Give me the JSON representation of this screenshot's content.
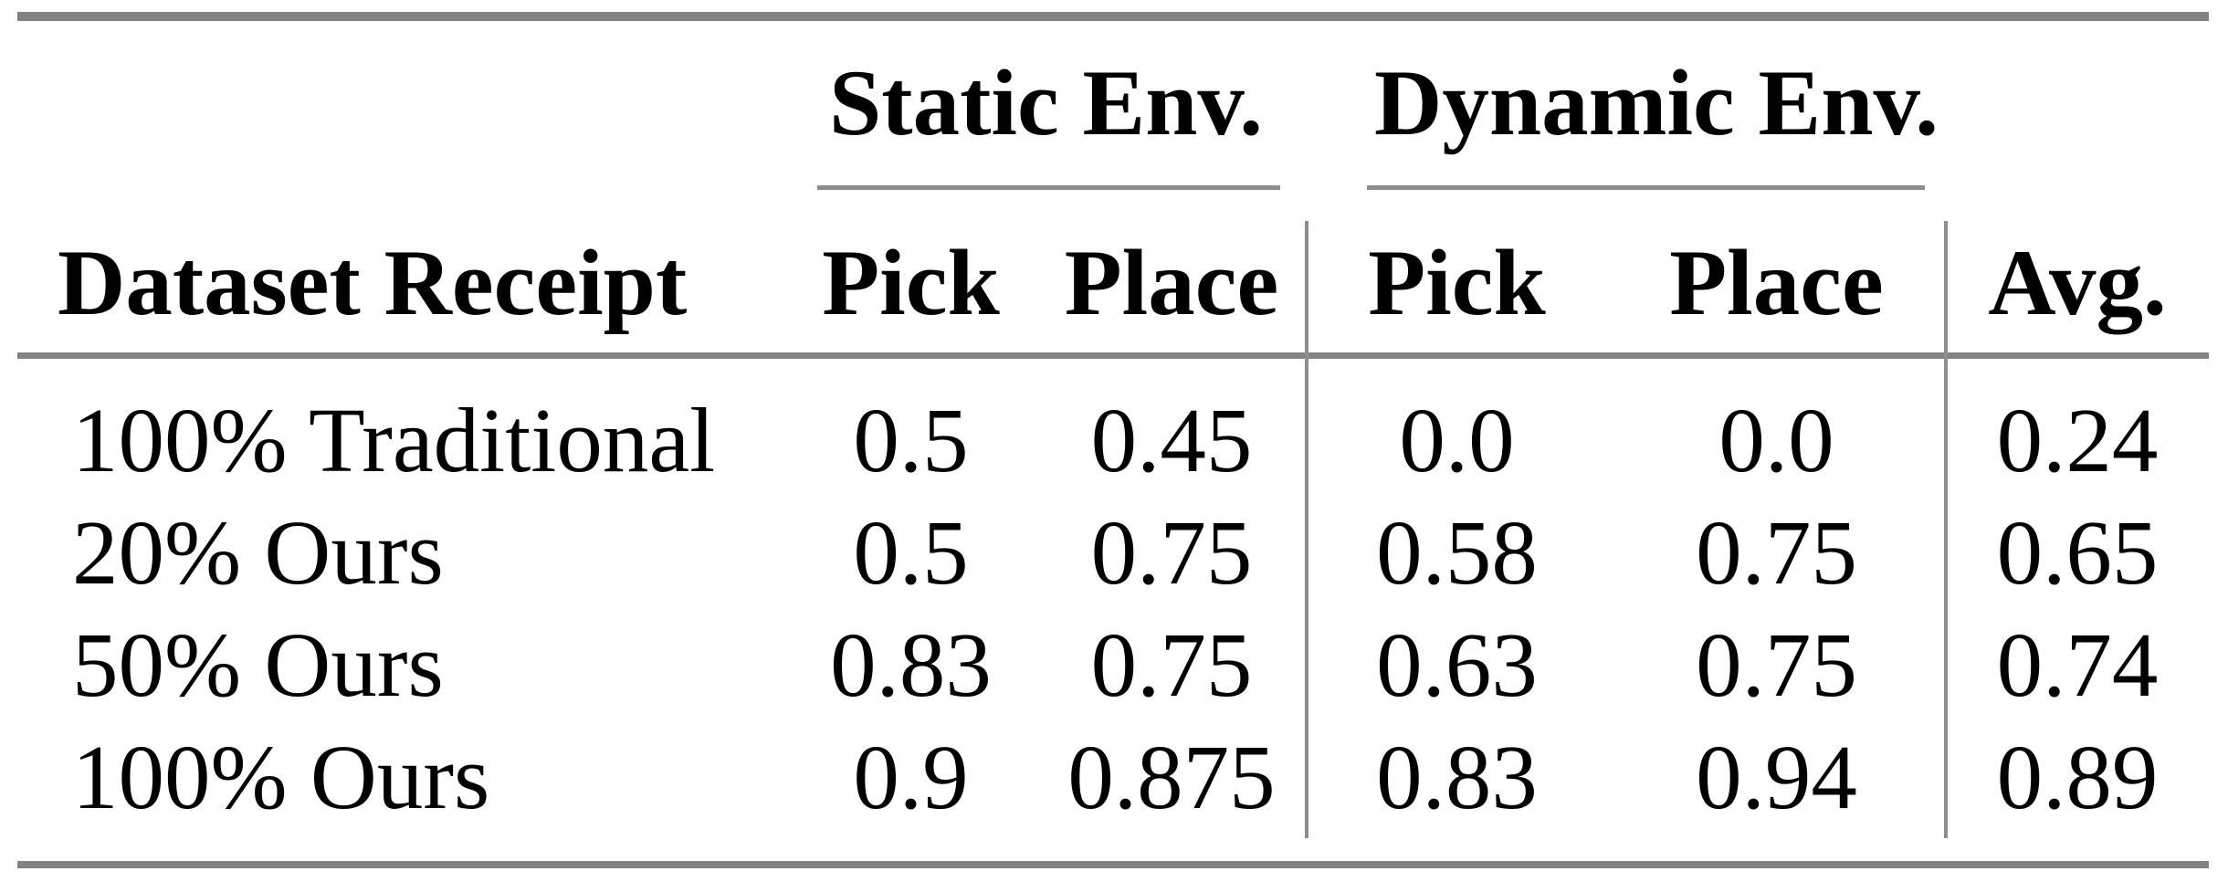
{
  "table": {
    "groups": [
      {
        "label": "Static Env."
      },
      {
        "label": "Dynamic Env."
      }
    ],
    "headers": {
      "row_label": "Dataset Receipt",
      "static_pick": "Pick",
      "static_place": "Place",
      "dynamic_pick": "Pick",
      "dynamic_place": "Place",
      "avg": "Avg."
    },
    "rows": [
      {
        "label": "100% Traditional",
        "static_pick": "0.5",
        "static_place": "0.45",
        "dynamic_pick": "0.0",
        "dynamic_place": "0.0",
        "avg": "0.24"
      },
      {
        "label": "20% Ours",
        "static_pick": "0.5",
        "static_place": "0.75",
        "dynamic_pick": "0.58",
        "dynamic_place": "0.75",
        "avg": "0.65"
      },
      {
        "label": "50% Ours",
        "static_pick": "0.83",
        "static_place": "0.75",
        "dynamic_pick": "0.63",
        "dynamic_place": "0.75",
        "avg": "0.74"
      },
      {
        "label": "100% Ours",
        "static_pick": "0.9",
        "static_place": "0.875",
        "dynamic_pick": "0.83",
        "dynamic_place": "0.94",
        "avg": "0.89"
      }
    ],
    "colors": {
      "rule_gray": "#828282",
      "line_gray": "#8e8e8e",
      "text": "#000000",
      "background": "#ffffff"
    }
  }
}
